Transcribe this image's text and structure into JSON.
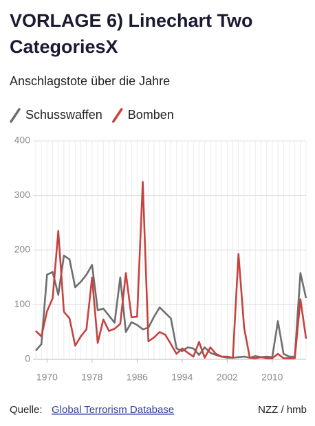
{
  "chart_data": {
    "type": "line",
    "title": "VORLAGE 6) Linechart Two CategoriesX",
    "title_lines": [
      "VORLAGE 6) Linechart Two",
      "CategoriesX"
    ],
    "subtitle": "Anschlagstote über die Jahre",
    "x": [
      1968,
      1969,
      1970,
      1971,
      1972,
      1973,
      1974,
      1975,
      1976,
      1977,
      1978,
      1979,
      1980,
      1981,
      1982,
      1983,
      1984,
      1985,
      1986,
      1987,
      1988,
      1989,
      1990,
      1991,
      1992,
      1993,
      1994,
      1995,
      1996,
      1997,
      1998,
      1999,
      2000,
      2001,
      2002,
      2003,
      2004,
      2005,
      2006,
      2007,
      2008,
      2009,
      2010,
      2011,
      2012,
      2013,
      2014,
      2015,
      2016
    ],
    "series": [
      {
        "name": "Schusswaffen",
        "color": "#6e6e6e",
        "values": [
          16,
          28,
          155,
          160,
          118,
          190,
          183,
          132,
          142,
          155,
          173,
          90,
          93,
          80,
          67,
          150,
          50,
          68,
          63,
          55,
          58,
          78,
          95,
          85,
          75,
          20,
          15,
          22,
          20,
          8,
          22,
          12,
          8,
          5,
          3,
          3,
          4,
          5,
          3,
          6,
          4,
          5,
          4,
          70,
          10,
          5,
          5,
          158,
          112
        ]
      },
      {
        "name": "Bomben",
        "color": "#c6423f",
        "values": [
          52,
          42,
          88,
          112,
          235,
          87,
          75,
          25,
          42,
          55,
          150,
          30,
          73,
          52,
          56,
          65,
          158,
          77,
          78,
          325,
          33,
          40,
          50,
          45,
          28,
          10,
          20,
          12,
          5,
          32,
          3,
          22,
          10,
          5,
          5,
          3,
          193,
          58,
          3,
          2,
          4,
          2,
          2,
          10,
          2,
          2,
          2,
          110,
          38
        ]
      }
    ],
    "xlim": [
      1968,
      2016
    ],
    "xticks": [
      1970,
      1978,
      1986,
      1994,
      2002,
      2010
    ],
    "ylim": [
      0,
      400
    ],
    "yticks": [
      0,
      100,
      200,
      300,
      400
    ],
    "grid": true,
    "source_label": "Quelle:",
    "source": "Global Terrorism Database",
    "credit": "NZZ / hmb"
  }
}
